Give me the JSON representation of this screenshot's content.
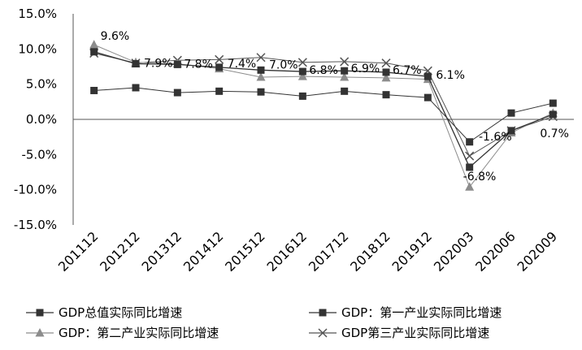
{
  "chart_data": {
    "type": "line",
    "title": "",
    "xlabel": "",
    "ylabel": "",
    "categories": [
      "201112",
      "201212",
      "201312",
      "201412",
      "201512",
      "201612",
      "201712",
      "201812",
      "201912",
      "202003",
      "202006",
      "202009"
    ],
    "ylim": [
      -15,
      15
    ],
    "yticks": [
      "15.0%",
      "10.0%",
      "5.0%",
      "0.0%",
      "-5.0%",
      "-10.0%",
      "-15.0%"
    ],
    "ytick_values": [
      15,
      10,
      5,
      0,
      -5,
      -10,
      -15
    ],
    "grid": false,
    "legend_position": "bottom",
    "series": [
      {
        "name": "GDP总值实际同比增速",
        "marker": "square",
        "color": "#333333",
        "values": [
          9.6,
          7.9,
          7.8,
          7.4,
          7.0,
          6.8,
          6.9,
          6.7,
          6.1,
          -6.8,
          -1.6,
          0.7
        ],
        "labels": [
          "9.6%",
          "7.9%",
          "7.8%",
          "7.4%",
          "7.0%",
          "6.8%",
          "6.9%",
          "6.7%",
          "6.1%",
          "-6.8%",
          "-1.6%",
          "0.7%"
        ]
      },
      {
        "name": "GDP：第一产业实际同比增速",
        "marker": "square",
        "color": "#333333",
        "values": [
          4.1,
          4.5,
          3.8,
          4.0,
          3.9,
          3.3,
          4.0,
          3.5,
          3.1,
          -3.2,
          0.9,
          2.3
        ]
      },
      {
        "name": "GDP：第二产业实际同比增速",
        "marker": "triangle",
        "color": "#8c8c8c",
        "values": [
          10.6,
          8.1,
          7.9,
          7.2,
          6.0,
          6.1,
          6.0,
          5.9,
          5.7,
          -9.6,
          -1.9,
          0.9
        ]
      },
      {
        "name": "GDP第三产业实际同比增速",
        "marker": "x",
        "color": "#555555",
        "values": [
          9.4,
          8.0,
          8.4,
          8.5,
          8.8,
          8.1,
          8.2,
          8.0,
          6.9,
          -5.2,
          -1.6,
          0.4
        ]
      }
    ]
  }
}
